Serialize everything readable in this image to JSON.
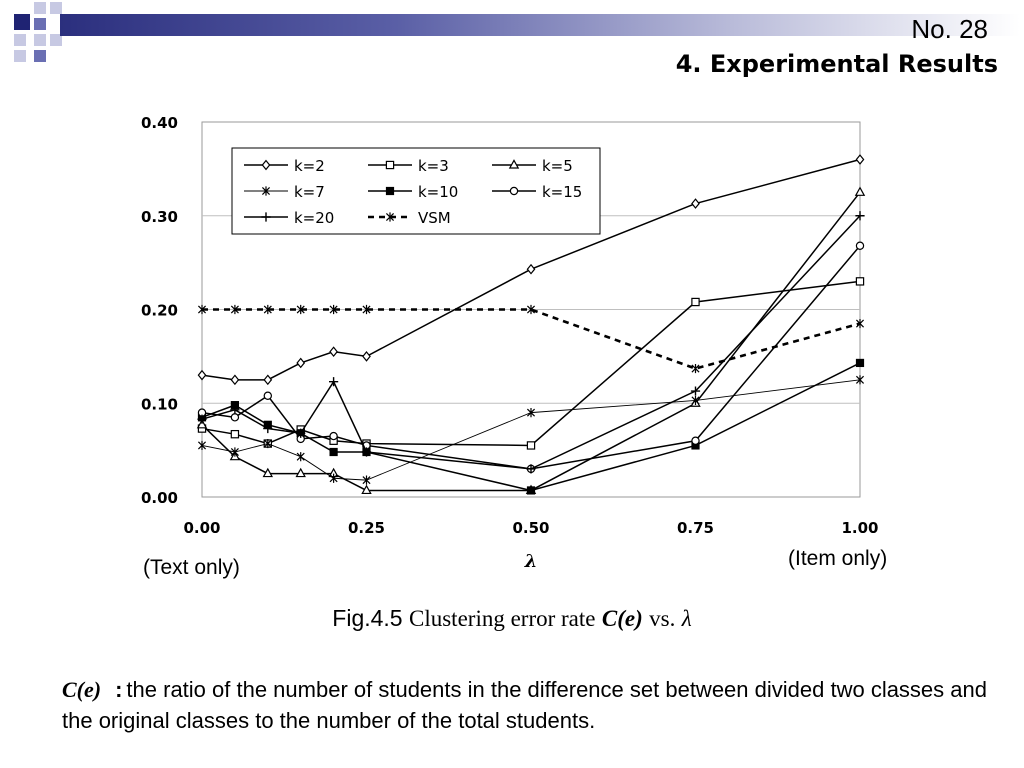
{
  "slide": {
    "number": "No. 28",
    "title": "4. Experimental Results"
  },
  "annotations": {
    "text_only": "(Text only)",
    "item_only": "(Item only)"
  },
  "caption": {
    "prefix": "Fig.4.5",
    "text": "Clustering error rate",
    "symbol": "C(e)",
    "vs": "vs.",
    "lambda": "λ"
  },
  "definition": {
    "term": "C(e)",
    "colon": ":",
    "text": "the ratio of the number of students in the difference set between divided two classes and the original classes to the number of the total students."
  },
  "colors": {
    "accent_dark": "#1f2373",
    "accent_mid": "#6a6fb3",
    "accent_light": "#c7c9e3"
  },
  "chart_data": {
    "type": "line",
    "x": [
      0.0,
      0.05,
      0.1,
      0.15,
      0.2,
      0.25,
      0.5,
      0.75,
      1.0
    ],
    "xticks": [
      "0.00",
      "0.25",
      "0.50",
      "0.75",
      "1.00"
    ],
    "xtick_values": [
      0.0,
      0.25,
      0.5,
      0.75,
      1.0
    ],
    "yticks": [
      "0.00",
      "0.10",
      "0.20",
      "0.30",
      "0.40"
    ],
    "ytick_values": [
      0.0,
      0.1,
      0.2,
      0.3,
      0.4
    ],
    "xlabel": "λ",
    "ylabel": "",
    "xlim": [
      0.0,
      1.0
    ],
    "ylim": [
      0.0,
      0.4
    ],
    "grid": "horizontal",
    "legend_position": "top-left",
    "series": [
      {
        "name": "k=2",
        "marker": "diamond",
        "dash": "solid",
        "values": [
          0.13,
          0.125,
          0.125,
          0.143,
          0.155,
          0.15,
          0.243,
          0.313,
          0.36
        ]
      },
      {
        "name": "k=3",
        "marker": "square",
        "dash": "solid",
        "values": [
          0.073,
          0.067,
          0.057,
          0.072,
          0.06,
          0.057,
          0.055,
          0.208,
          0.23
        ]
      },
      {
        "name": "k=5",
        "marker": "triangle",
        "dash": "solid",
        "values": [
          0.077,
          0.043,
          0.025,
          0.025,
          0.025,
          0.007,
          0.007,
          0.1,
          0.325
        ]
      },
      {
        "name": "k=7",
        "marker": "star",
        "dash": "thin",
        "values": [
          0.055,
          0.048,
          0.057,
          0.043,
          0.02,
          0.018,
          0.09,
          0.103,
          0.125
        ]
      },
      {
        "name": "k=10",
        "marker": "filled-square",
        "dash": "solid",
        "values": [
          0.085,
          0.098,
          0.077,
          0.068,
          0.048,
          0.048,
          0.007,
          0.055,
          0.143
        ]
      },
      {
        "name": "k=15",
        "marker": "circle",
        "dash": "solid",
        "values": [
          0.09,
          0.085,
          0.108,
          0.062,
          0.065,
          0.055,
          0.03,
          0.06,
          0.268
        ]
      },
      {
        "name": "k=20",
        "marker": "plus",
        "dash": "solid",
        "values": [
          0.083,
          0.093,
          0.073,
          0.068,
          0.123,
          0.048,
          0.03,
          0.113,
          0.3
        ]
      },
      {
        "name": "VSM",
        "marker": "star",
        "dash": "dashed",
        "values": [
          0.2,
          0.2,
          0.2,
          0.2,
          0.2,
          0.2,
          0.2,
          0.137,
          0.185
        ]
      }
    ]
  }
}
